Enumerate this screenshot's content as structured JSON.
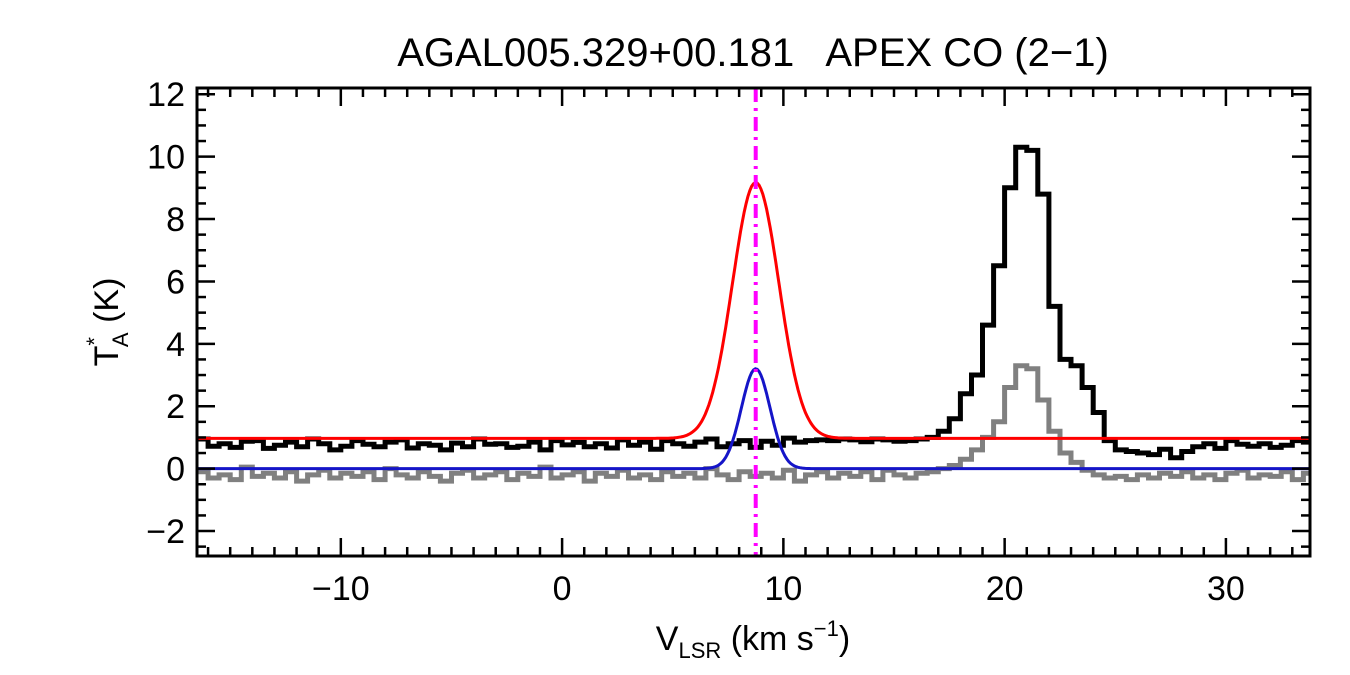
{
  "chart_data": {
    "type": "line",
    "title": "AGAL005.329+00.181   APEX CO (2−1)",
    "xlabel": {
      "main": "V",
      "sub": "LSR",
      "rest": " (km s",
      "sup": "−1",
      "close": ")"
    },
    "ylabel": {
      "main": "T",
      "sup": "*",
      "sub": "A",
      "rest": " (K)"
    },
    "xlim": [
      -16.5,
      33.8
    ],
    "ylim": [
      -2.8,
      12.2
    ],
    "xticks": [
      -10,
      0,
      10,
      20,
      30
    ],
    "xtick_labels": [
      "−10",
      "0",
      "10",
      "20",
      "30"
    ],
    "yticks": [
      -2,
      0,
      2,
      4,
      6,
      8,
      10,
      12
    ],
    "ytick_labels": [
      "−2",
      "0",
      "2",
      "4",
      "6",
      "8",
      "10",
      "12"
    ],
    "x_minor_step": 1,
    "y_minor_step": 0.5,
    "grid": false,
    "vline": {
      "x": 8.75,
      "color": "#ff00ff",
      "style": "dash-dot"
    },
    "series": [
      {
        "style": "step",
        "color": "#000000",
        "x_start": -16.5,
        "x_step": 0.5,
        "values": [
          0.95,
          0.72,
          0.8,
          0.68,
          0.88,
          0.9,
          0.65,
          0.75,
          0.85,
          0.7,
          0.95,
          0.8,
          0.6,
          0.72,
          0.9,
          0.78,
          0.7,
          0.85,
          0.92,
          0.66,
          0.8,
          0.75,
          0.6,
          0.82,
          0.7,
          0.95,
          0.78,
          0.8,
          0.68,
          0.72,
          0.85,
          0.6,
          0.9,
          0.76,
          0.84,
          0.7,
          0.8,
          0.66,
          0.92,
          0.75,
          0.85,
          0.62,
          0.9,
          0.8,
          0.72,
          0.85,
          0.95,
          0.7,
          0.8,
          0.9,
          0.68,
          0.88,
          0.75,
          0.98,
          0.85,
          0.9,
          0.92,
          0.9,
          0.95,
          0.92,
          0.86,
          0.95,
          0.92,
          0.88,
          0.9,
          0.95,
          1.0,
          1.2,
          1.6,
          2.4,
          3.0,
          4.6,
          6.5,
          9.0,
          10.3,
          10.2,
          8.8,
          5.2,
          3.5,
          3.3,
          2.6,
          1.8,
          0.9,
          0.6,
          0.55,
          0.5,
          0.45,
          0.62,
          0.35,
          0.55,
          0.7,
          0.8,
          0.65,
          0.9,
          0.78,
          0.72,
          0.8,
          0.68,
          0.75,
          0.9,
          0.85,
          0.7,
          0.78,
          0.62,
          0.88,
          0.72,
          0.8,
          0.92,
          0.75,
          0.85,
          0.65,
          0.9,
          0.8,
          0.72,
          0.95,
          0.78,
          0.85,
          0.68,
          0.9,
          0.8,
          0.75,
          0.82,
          0.92,
          0.7,
          0.85,
          0.78,
          0.9,
          0.72,
          0.8,
          0.88,
          0.75,
          0.95,
          0.82,
          0.7,
          0.9,
          0.78,
          0.85,
          0.68,
          0.88,
          0.8,
          0.72,
          0.92,
          0.78,
          0.85,
          0.7,
          0.9,
          0.76,
          0.82,
          0.68,
          0.9,
          0.75,
          0.85,
          0.62,
          0.88,
          0.78,
          0.8,
          0.7,
          0.85,
          0.75,
          0.9,
          0.72,
          0.85,
          0.8,
          0.78,
          0.68,
          0.9,
          0.82,
          0.75,
          0.85,
          0.7,
          0.88,
          0.78,
          0.8,
          0.72,
          0.92,
          0.75,
          0.85,
          0.8,
          0.7,
          0.88,
          0.78,
          0.85,
          0.72,
          0.9,
          0.75,
          0.82,
          0.68,
          0.88,
          0.75,
          0.85,
          0.8,
          0.7,
          0.9,
          0.65,
          0.8,
          0.75
        ]
      },
      {
        "style": "step",
        "color": "#808080",
        "x_start": -16.5,
        "x_step": 0.5,
        "values": [
          -0.1,
          -0.3,
          -0.2,
          -0.35,
          0.05,
          -0.25,
          -0.15,
          -0.3,
          -0.1,
          -0.4,
          -0.2,
          -0.05,
          -0.3,
          -0.15,
          -0.25,
          -0.1,
          -0.35,
          0.0,
          -0.2,
          -0.3,
          -0.1,
          -0.25,
          -0.4,
          -0.15,
          -0.05,
          -0.3,
          -0.2,
          -0.1,
          -0.35,
          -0.15,
          -0.25,
          0.05,
          -0.3,
          -0.2,
          -0.1,
          -0.4,
          -0.15,
          -0.25,
          -0.05,
          -0.3,
          -0.2,
          -0.35,
          -0.1,
          -0.25,
          -0.15,
          -0.3,
          0.0,
          -0.2,
          -0.35,
          -0.1,
          -0.25,
          -0.15,
          -0.3,
          -0.05,
          -0.4,
          -0.2,
          -0.1,
          -0.3,
          -0.15,
          -0.25,
          -0.1,
          -0.35,
          -0.05,
          -0.2,
          -0.3,
          -0.15,
          -0.1,
          0.0,
          0.1,
          0.3,
          0.6,
          1.0,
          1.5,
          2.6,
          3.3,
          3.2,
          2.2,
          1.2,
          0.5,
          0.2,
          -0.05,
          -0.2,
          -0.3,
          -0.25,
          -0.35,
          -0.2,
          -0.3,
          -0.15,
          -0.25,
          -0.1,
          -0.3,
          -0.2,
          -0.35,
          -0.15,
          -0.05,
          -0.3,
          -0.2,
          -0.25,
          -0.1,
          -0.35,
          -0.15,
          -0.3,
          -0.2,
          -0.05,
          -0.25,
          -0.4,
          -0.15,
          -0.3,
          -0.1,
          -0.2,
          -0.35,
          -0.15,
          -0.25,
          -0.05,
          -0.3,
          -0.2,
          -0.1,
          -0.35,
          -0.25,
          -0.15,
          -0.3,
          0.0,
          -0.2,
          -0.3,
          -0.1,
          -0.25,
          -0.4,
          -0.15,
          -0.2,
          -0.05,
          -0.3,
          -0.25,
          -0.1,
          -0.35,
          -0.2,
          -0.15,
          -0.3,
          -0.05,
          -0.25,
          -0.2,
          -0.1,
          -0.35,
          -0.15,
          -0.3,
          -0.2,
          -0.05,
          -0.25,
          -0.4,
          -0.15,
          -0.2,
          -0.1,
          -0.3,
          -0.25,
          -0.05,
          -0.35,
          -0.2,
          -0.15,
          -0.3,
          0.05,
          -0.25,
          -0.2,
          -0.1,
          -0.35,
          -0.15,
          -0.3,
          -0.2,
          -0.05,
          -0.25,
          -0.4,
          -0.1,
          -0.2,
          -0.3,
          -0.15,
          -0.25,
          -0.05,
          -0.35,
          -0.2,
          -0.1,
          -0.3,
          -0.15,
          -0.25,
          0.0,
          -0.3,
          -0.2,
          -0.35,
          -0.1,
          -0.25,
          -0.15,
          -0.3,
          -0.05,
          -0.2,
          -0.35,
          -0.15
        ]
      },
      {
        "style": "gaussian",
        "color": "#ff0000",
        "baseline": 0.97,
        "amplitude": 8.2,
        "center": 8.75,
        "sigma": 1.05
      },
      {
        "style": "gaussian",
        "color": "#1515c8",
        "baseline": 0.0,
        "amplitude": 3.2,
        "center": 8.75,
        "sigma": 0.65
      }
    ]
  }
}
